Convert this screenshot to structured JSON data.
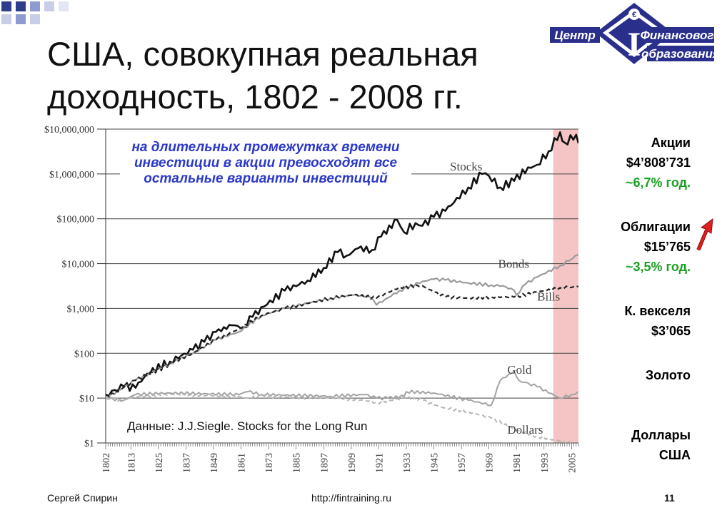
{
  "slide": {
    "title_line1": "США, совокупная реальная",
    "title_line2": "доходность, 1802 - 2008 гг.",
    "annotation": "на длительных промежутках времени инвестиции в акции превосходят все остальные варианты инвестиций",
    "source_note": "Данные: J.J.Siegle. Stocks for the Long Run",
    "logo_line1": "Центр",
    "logo_line2": "Финансового",
    "logo_line3": "образования",
    "logo_letter": "I",
    "logo_symbol": "€"
  },
  "side_panel": {
    "stocks_label": "Акции",
    "stocks_value": "$4’808’731",
    "stocks_rate": "~6,7% год.",
    "bonds_label": "Облигации",
    "bonds_value": "$15’765",
    "bonds_rate": "~3,5% год.",
    "bills_label": "К. векселя",
    "bills_value": "$3’065",
    "gold_label": "Золото",
    "dollars_label_line1": "Доллары",
    "dollars_label_line2": "США"
  },
  "footer": {
    "author": "Сергей  Спирин",
    "url": "http://fintraining.ru",
    "page": "11"
  },
  "colors": {
    "annotation": "#2b38c8",
    "rate_green": "#1aa022",
    "highlight_band": "#f2b2b2",
    "logo_blue": "#2b2f8c",
    "arrow_red": "#e01f1f"
  },
  "chart_data": {
    "type": "line",
    "y_scale": "log",
    "ylim": [
      1,
      10000000
    ],
    "xlim": [
      1802,
      2008
    ],
    "y_ticks": [
      {
        "value": 10000000,
        "label": "$10,000,000"
      },
      {
        "value": 1000000,
        "label": "$1,000,000"
      },
      {
        "value": 100000,
        "label": "$100,000"
      },
      {
        "value": 10000,
        "label": "$10,000"
      },
      {
        "value": 1000,
        "label": "$1,000"
      },
      {
        "value": 100,
        "label": "$100"
      },
      {
        "value": 10,
        "label": "$10"
      },
      {
        "value": 1,
        "label": "$1"
      }
    ],
    "x_ticks": [
      "1802",
      "1813",
      "1825",
      "1837",
      "1849",
      "1861",
      "1873",
      "1885",
      "1897",
      "1909",
      "1921",
      "1933",
      "1945",
      "1957",
      "1969",
      "1981",
      "1993",
      "2005"
    ],
    "grid": true,
    "highlight_band": [
      1997,
      2008
    ],
    "series": [
      {
        "name": "Stocks",
        "label_year": 1952,
        "label_value": 1200000,
        "x": [
          1802,
          1810,
          1815,
          1820,
          1830,
          1840,
          1845,
          1850,
          1857,
          1862,
          1866,
          1871,
          1880,
          1890,
          1897,
          1903,
          1907,
          1912,
          1918,
          1922,
          1929,
          1932,
          1937,
          1940,
          1945,
          1950,
          1960,
          1966,
          1969,
          1974,
          1980,
          1986,
          1990,
          1995,
          2000,
          2002,
          2007,
          2008
        ],
        "values": [
          12,
          18,
          17,
          35,
          65,
          120,
          180,
          300,
          420,
          380,
          650,
          1100,
          2500,
          4200,
          8000,
          18000,
          15000,
          22000,
          20000,
          40000,
          95000,
          50000,
          80000,
          70000,
          110000,
          150000,
          500000,
          1000000,
          900000,
          500000,
          700000,
          1400000,
          1600000,
          3200000,
          8500000,
          5000000,
          7500000,
          4808731
        ]
      },
      {
        "name": "Bonds",
        "label_year": 1973,
        "label_value": 8000,
        "x": [
          1802,
          1815,
          1830,
          1840,
          1850,
          1860,
          1870,
          1880,
          1890,
          1900,
          1910,
          1917,
          1920,
          1930,
          1940,
          1945,
          1950,
          1960,
          1970,
          1975,
          1980,
          1981,
          1985,
          1990,
          2000,
          2008
        ],
        "values": [
          10,
          25,
          60,
          100,
          200,
          300,
          700,
          1000,
          1300,
          1700,
          2000,
          1800,
          1200,
          2500,
          4000,
          4500,
          4300,
          3700,
          3300,
          3200,
          2500,
          2000,
          3500,
          5000,
          9000,
          15765
        ]
      },
      {
        "name": "Bills",
        "label_year": 1990,
        "label_value": 1500,
        "x": [
          1802,
          1815,
          1830,
          1840,
          1850,
          1860,
          1870,
          1880,
          1890,
          1900,
          1910,
          1920,
          1930,
          1940,
          1945,
          1950,
          1960,
          1970,
          1980,
          1990,
          2000,
          2008
        ],
        "values": [
          10,
          25,
          60,
          100,
          200,
          350,
          700,
          1000,
          1300,
          1700,
          2000,
          1700,
          3000,
          3200,
          2300,
          1800,
          1700,
          1800,
          1800,
          2300,
          2900,
          3065
        ]
      },
      {
        "name": "Gold",
        "label_year": 1977,
        "label_value": 35,
        "x": [
          1802,
          1810,
          1815,
          1830,
          1860,
          1864,
          1870,
          1900,
          1915,
          1920,
          1925,
          1932,
          1933,
          1945,
          1960,
          1970,
          1974,
          1980,
          1982,
          1990,
          2000,
          2005,
          2008
        ],
        "values": [
          10,
          9,
          12,
          13,
          12,
          14,
          12,
          11,
          12,
          10,
          10,
          11,
          14,
          13,
          9,
          7,
          25,
          40,
          25,
          18,
          10,
          12,
          14
        ]
      },
      {
        "name": "Dollars",
        "label_year": 1977,
        "label_value": 1.6,
        "x": [
          1802,
          1810,
          1815,
          1830,
          1860,
          1864,
          1870,
          1900,
          1915,
          1920,
          1933,
          1940,
          1945,
          1950,
          1960,
          1970,
          1980,
          1990,
          2000,
          2008
        ],
        "values": [
          10,
          9,
          11,
          12,
          11,
          10,
          11,
          10,
          9,
          8,
          10,
          9,
          7,
          6,
          5,
          3.6,
          2,
          1.4,
          1.1,
          0.9
        ]
      }
    ]
  }
}
